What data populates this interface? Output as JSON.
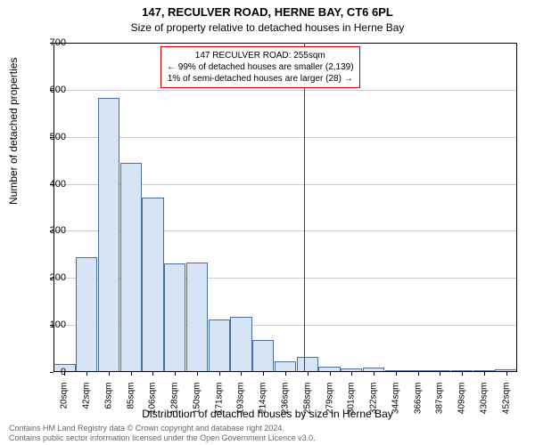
{
  "title_main": "147, RECULVER ROAD, HERNE BAY, CT6 6PL",
  "title_sub": "Size of property relative to detached houses in Herne Bay",
  "y_axis_label": "Number of detached properties",
  "x_axis_label": "Distribution of detached houses by size in Herne Bay",
  "footer_line1": "Contains HM Land Registry data © Crown copyright and database right 2024.",
  "footer_line2": "Contains public sector information licensed under the Open Government Licence v3.0.",
  "annotation": {
    "line1": "147 RECULVER ROAD: 255sqm",
    "line2": "← 99% of detached houses are smaller (2,139)",
    "line3": "1% of semi-detached houses are larger (28) →"
  },
  "chart": {
    "type": "histogram",
    "ylim": [
      0,
      700
    ],
    "ytick_step": 100,
    "x_ticks": [
      "20sqm",
      "42sqm",
      "63sqm",
      "85sqm",
      "106sqm",
      "128sqm",
      "150sqm",
      "171sqm",
      "193sqm",
      "214sqm",
      "236sqm",
      "258sqm",
      "279sqm",
      "301sqm",
      "322sqm",
      "344sqm",
      "366sqm",
      "387sqm",
      "409sqm",
      "430sqm",
      "452sqm"
    ],
    "n_bins": 21,
    "values": [
      18,
      245,
      582,
      445,
      370,
      230,
      232,
      112,
      118,
      68,
      22,
      32,
      12,
      8,
      10,
      4,
      2,
      2,
      2,
      2,
      6
    ],
    "bar_fill": "#d6e4f5",
    "bar_stroke": "#4a6fa5",
    "grid_color": "#cccccc",
    "axis_color": "#000000",
    "marker_color": "#d00000",
    "marker_x_value": 255,
    "x_min": 10,
    "x_max": 463,
    "background": "#ffffff"
  }
}
